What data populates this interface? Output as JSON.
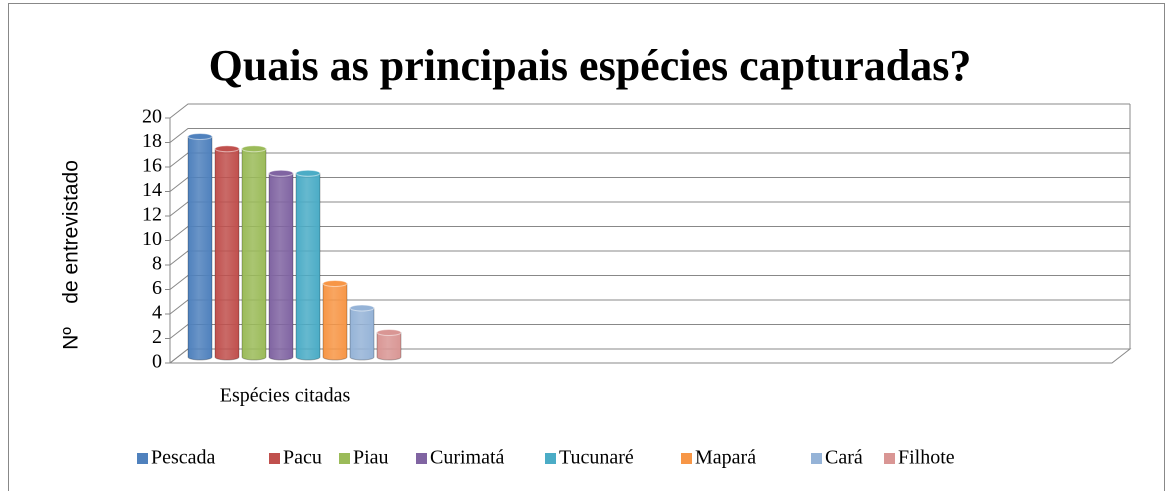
{
  "chart_data": {
    "type": "bar3d",
    "title": "Quais as principais espécies capturadas?",
    "y_label": "Nº    de entrevistado",
    "categories": [
      "Espécies citadas"
    ],
    "series": [
      {
        "name": "Pescada",
        "color": "#4f81bd",
        "values": [
          18
        ]
      },
      {
        "name": "Pacu",
        "color": "#c0504d",
        "values": [
          17
        ]
      },
      {
        "name": "Piau",
        "color": "#9bbb59",
        "values": [
          17
        ]
      },
      {
        "name": "Curimatá",
        "color": "#8064a2",
        "values": [
          15
        ]
      },
      {
        "name": "Tucunaré",
        "color": "#4bacc6",
        "values": [
          15
        ]
      },
      {
        "name": "Mapará",
        "color": "#f79646",
        "values": [
          6
        ]
      },
      {
        "name": "Cará",
        "color": "#95b3d7",
        "values": [
          4
        ]
      },
      {
        "name": "Filhote",
        "color": "#d99694",
        "values": [
          2
        ]
      }
    ],
    "ylim": [
      0,
      20
    ],
    "yticks": [
      0,
      2,
      4,
      6,
      8,
      10,
      12,
      14,
      16,
      18,
      20
    ],
    "grid": true,
    "legend": "bottom"
  }
}
